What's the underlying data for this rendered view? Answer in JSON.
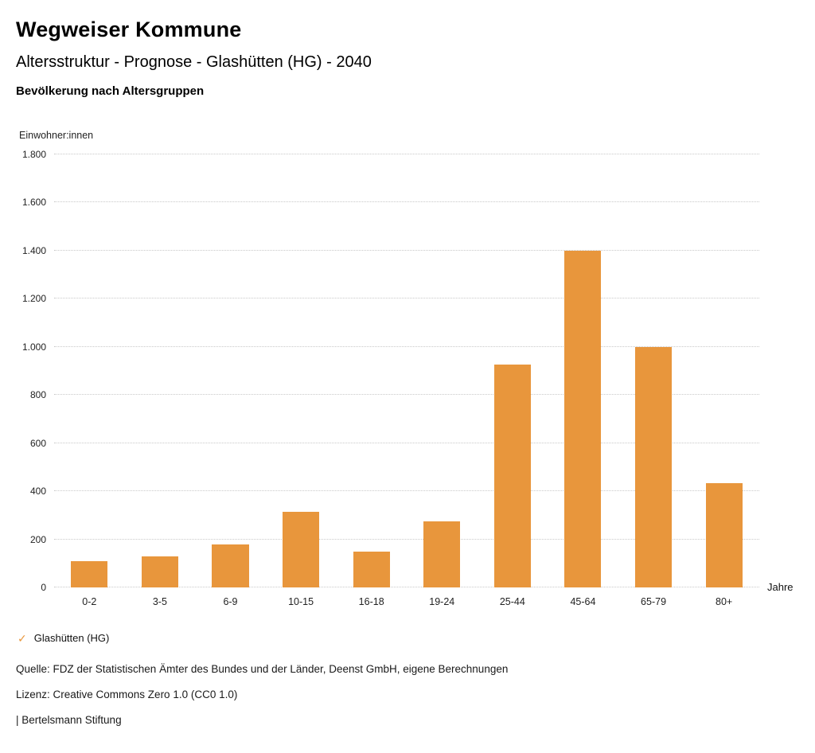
{
  "header": {
    "title": "Wegweiser Kommune",
    "subtitle": "Altersstruktur - Prognose - Glashütten (HG) - 2040",
    "chart_heading": "Bevölkerung nach Altersgruppen"
  },
  "chart_data": {
    "type": "bar",
    "title": "Bevölkerung nach Altersgruppen",
    "categories": [
      "0-2",
      "3-5",
      "6-9",
      "10-15",
      "16-18",
      "19-24",
      "25-44",
      "45-64",
      "65-79",
      "80+"
    ],
    "values": [
      110,
      130,
      180,
      315,
      150,
      275,
      925,
      1400,
      1000,
      435
    ],
    "series_name": "Glashütten (HG)",
    "xlabel": "Jahre",
    "ylabel": "Einwohner:innen",
    "ylim": [
      0,
      1800
    ],
    "ytick_step": 200,
    "ytick_labels": [
      "0",
      "200",
      "400",
      "600",
      "800",
      "1.000",
      "1.200",
      "1.400",
      "1.600",
      "1.800"
    ],
    "grid": "horizontal dotted",
    "legend_position": "bottom-left",
    "bar_color": "#E8963C"
  },
  "legend": {
    "check_icon": "✓",
    "label": "Glashütten (HG)",
    "color": "#E8963C"
  },
  "footer": {
    "source": "Quelle: FDZ der Statistischen Ämter des Bundes und der Länder, Deenst GmbH, eigene Berechnungen",
    "license": "Lizenz: Creative Commons Zero 1.0 (CC0 1.0)",
    "attribution": "| Bertelsmann Stiftung"
  }
}
